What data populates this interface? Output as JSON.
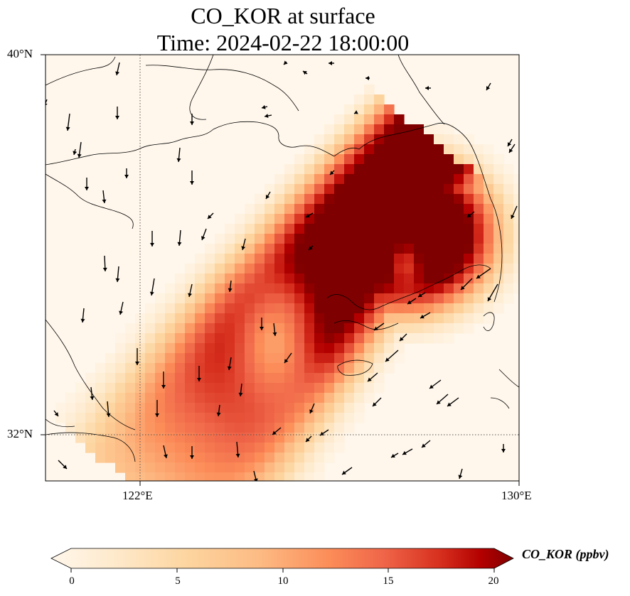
{
  "chart_data": {
    "type": "heatmap",
    "title_lines": [
      "CO_KOR at surface",
      "Time: 2024-02-22 18:00:00"
    ],
    "variable": "CO_KOR",
    "x_ticks": [
      "122°E",
      "130°E"
    ],
    "y_ticks": [
      "40°N",
      "32°N"
    ],
    "xlim": [
      120,
      130
    ],
    "ylim": [
      31,
      40
    ],
    "grid": "dotted at 122°E and 32°N",
    "colorbar": {
      "label": "CO_KOR (ppbv)",
      "ticks": [
        "0",
        "5",
        "10",
        "15",
        "20"
      ],
      "range": [
        0,
        20
      ],
      "extend": "both",
      "colormap": "OrRd"
    },
    "plume_description_values": {
      "core_max": 20,
      "core_region_lon": [
        125.5,
        129
      ],
      "core_region_lat": [
        34,
        37
      ]
    },
    "wind_vectors": "southward / south-westward arrows over the domain"
  },
  "colors": {
    "low": "#fff7ec",
    "mid": "#fc8d59",
    "high": "#7f0000"
  }
}
